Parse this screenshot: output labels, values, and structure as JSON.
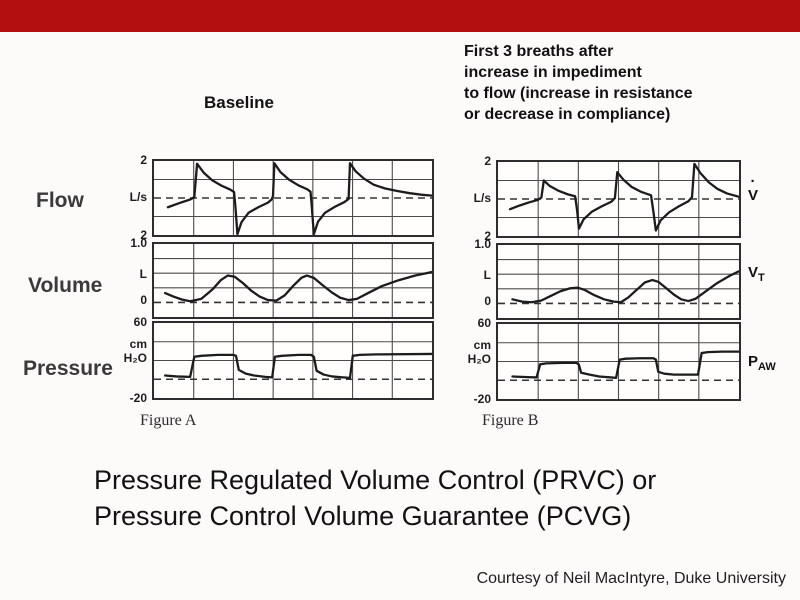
{
  "slide": {
    "accent_bar_color": "#b30e10",
    "title_lines": [
      "Pressure Regulated Volume Control (PRVC) or",
      "Pressure Control Volume Guarantee (PCVG)"
    ],
    "attribution": "Courtesy of Neil MacIntyre, Duke University"
  },
  "headings": {
    "baseline": "Baseline",
    "right_lines": [
      "First 3 breaths after",
      "increase in impediment",
      "to flow (increase in resistance",
      "or decrease in compliance)"
    ]
  },
  "row_labels": {
    "flow": "Flow",
    "volume": "Volume",
    "pressure": "Pressure"
  },
  "figures": {
    "left": "Figure A",
    "right": "Figure B"
  },
  "axis_labels": {
    "flow": {
      "top": "2",
      "mid": "L/s",
      "bottom": "2"
    },
    "volume": {
      "top": "1.0",
      "mid": "L",
      "zero": "0"
    },
    "pressure": {
      "top": "60",
      "unit_line1": "cm",
      "unit_line2": "H₂O",
      "bottom": "-20"
    }
  },
  "trace_labels": {
    "flow_base": "V",
    "flow_dot": "·",
    "volume_base": "V",
    "volume_sub": "T",
    "pressure_base": "P",
    "pressure_sub": "AW"
  },
  "chart_data": [
    {
      "id": "baseline-flow",
      "type": "line",
      "figure": "Figure A",
      "column_title": "Baseline",
      "signal": "Flow",
      "units": "L/s",
      "ylim": [
        -2,
        2
      ],
      "y_gridlines": [
        1,
        -1
      ],
      "baseline_dashed_y": 0,
      "x_columns": 7,
      "x_units": "percent of time axis",
      "breaths": 3,
      "pattern": "Three identical decelerating-flow breaths: peak inspiratory flow ~1.9 L/s decaying toward 0, sharp expiratory spike to ~-2 L/s recovering to baseline",
      "points_xy": [
        [
          5,
          -0.5
        ],
        [
          9,
          -0.28
        ],
        [
          13,
          -0.08
        ],
        [
          14.5,
          0.05
        ],
        [
          15.5,
          1.85
        ],
        [
          18,
          1.35
        ],
        [
          21,
          0.95
        ],
        [
          24.5,
          0.65
        ],
        [
          27.5,
          0.45
        ],
        [
          28.8,
          0.32
        ],
        [
          29.3,
          -0.5
        ],
        [
          30,
          -1.95
        ],
        [
          31.5,
          -1.3
        ],
        [
          34,
          -0.8
        ],
        [
          37.5,
          -0.5
        ],
        [
          41,
          -0.25
        ],
        [
          42.3,
          -0.08
        ],
        [
          42.8,
          0.1
        ],
        [
          43.3,
          1.88
        ],
        [
          45.5,
          1.4
        ],
        [
          48.5,
          1.0
        ],
        [
          52,
          0.68
        ],
        [
          55,
          0.48
        ],
        [
          56.3,
          0.34
        ],
        [
          56.8,
          -0.55
        ],
        [
          57.5,
          -1.95
        ],
        [
          59,
          -1.28
        ],
        [
          61.5,
          -0.8
        ],
        [
          65,
          -0.48
        ],
        [
          68.5,
          -0.22
        ],
        [
          70,
          -0.05
        ],
        [
          70.5,
          1.88
        ],
        [
          72.5,
          1.45
        ],
        [
          75.5,
          1.05
        ],
        [
          79,
          0.72
        ],
        [
          83,
          0.52
        ],
        [
          87.5,
          0.38
        ],
        [
          92,
          0.26
        ],
        [
          96,
          0.18
        ],
        [
          100,
          0.13
        ]
      ]
    },
    {
      "id": "baseline-volume",
      "type": "line",
      "figure": "Figure A",
      "column_title": "Baseline",
      "signal": "Volume",
      "units": "L",
      "ylim": [
        -0.25,
        1.0
      ],
      "y_gridlines": [
        0.75,
        0.5,
        0.25
      ],
      "baseline_dashed_y": 0,
      "x_columns": 7,
      "x_units": "percent of time axis",
      "breaths": 3,
      "pattern": "Constant tidal volume ~0.45 L each breath, returning to 0 between breaths",
      "points_xy": [
        [
          4,
          0.16
        ],
        [
          7,
          0.1
        ],
        [
          10,
          0.05
        ],
        [
          13,
          0.02
        ],
        [
          17,
          0.06
        ],
        [
          21,
          0.22
        ],
        [
          24,
          0.38
        ],
        [
          26.5,
          0.46
        ],
        [
          29,
          0.44
        ],
        [
          32,
          0.33
        ],
        [
          35,
          0.2
        ],
        [
          38,
          0.1
        ],
        [
          41,
          0.04
        ],
        [
          44,
          0.03
        ],
        [
          47,
          0.12
        ],
        [
          50,
          0.28
        ],
        [
          53,
          0.42
        ],
        [
          55,
          0.46
        ],
        [
          57.5,
          0.42
        ],
        [
          60.5,
          0.3
        ],
        [
          64,
          0.17
        ],
        [
          67,
          0.08
        ],
        [
          70,
          0.04
        ],
        [
          73,
          0.06
        ],
        [
          77,
          0.16
        ],
        [
          82,
          0.28
        ],
        [
          88,
          0.38
        ],
        [
          94,
          0.46
        ],
        [
          100,
          0.52
        ]
      ]
    },
    {
      "id": "baseline-pressure",
      "type": "line",
      "figure": "Figure A",
      "column_title": "Baseline",
      "signal": "Pressure",
      "units": "cm H₂O",
      "ylim": [
        -20,
        60
      ],
      "y_gridlines": [
        40,
        20
      ],
      "baseline_dashed_y": 0,
      "x_columns": 7,
      "x_units": "percent of time axis",
      "breaths": 3,
      "pattern": "Square-wave pressure breaths with constant plateau ~26 cm H₂O, baseline just above 0",
      "points_xy": [
        [
          4,
          4
        ],
        [
          8,
          3
        ],
        [
          13,
          2.5
        ],
        [
          14.5,
          24
        ],
        [
          17,
          25
        ],
        [
          23,
          26
        ],
        [
          28.5,
          26
        ],
        [
          29.5,
          25
        ],
        [
          30.5,
          10
        ],
        [
          33,
          6
        ],
        [
          36,
          4
        ],
        [
          40,
          2.5
        ],
        [
          42.5,
          2
        ],
        [
          43.5,
          24
        ],
        [
          46,
          25
        ],
        [
          52,
          26
        ],
        [
          56.5,
          26
        ],
        [
          57.5,
          24
        ],
        [
          58.5,
          9
        ],
        [
          61,
          5
        ],
        [
          64,
          3
        ],
        [
          68,
          2
        ],
        [
          70.5,
          1.5
        ],
        [
          71.5,
          25
        ],
        [
          74,
          26
        ],
        [
          80,
          26.5
        ],
        [
          100,
          27
        ]
      ]
    },
    {
      "id": "impediment-flow",
      "type": "line",
      "figure": "Figure B",
      "column_title": "First 3 breaths after increase in impediment to flow",
      "signal": "Flow",
      "units": "L/s",
      "ylim": [
        -2,
        2
      ],
      "y_gridlines": [
        1,
        -1
      ],
      "baseline_dashed_y": 0,
      "x_columns": 6,
      "x_units": "percent of time axis",
      "breaths": 3,
      "pattern": "Peak inspiratory flow increases each breath (~1.0, ~1.5, ~1.9 L/s) as the ventilator restores volume",
      "points_xy": [
        [
          5,
          -0.55
        ],
        [
          9,
          -0.35
        ],
        [
          13,
          -0.18
        ],
        [
          16.5,
          -0.05
        ],
        [
          18,
          0.08
        ],
        [
          19,
          1.0
        ],
        [
          21.5,
          0.7
        ],
        [
          25,
          0.45
        ],
        [
          29,
          0.25
        ],
        [
          32,
          0.15
        ],
        [
          32.8,
          -0.6
        ],
        [
          33.6,
          -1.6
        ],
        [
          35.5,
          -1.1
        ],
        [
          39,
          -0.68
        ],
        [
          43,
          -0.4
        ],
        [
          47,
          -0.15
        ],
        [
          48.5,
          0.05
        ],
        [
          49.5,
          1.45
        ],
        [
          52,
          1.05
        ],
        [
          55.5,
          0.65
        ],
        [
          59.5,
          0.38
        ],
        [
          63.5,
          0.2
        ],
        [
          64.5,
          -0.7
        ],
        [
          65.5,
          -1.7
        ],
        [
          67.5,
          -1.15
        ],
        [
          71,
          -0.72
        ],
        [
          75,
          -0.4
        ],
        [
          79,
          -0.12
        ],
        [
          80.5,
          0.1
        ],
        [
          81.5,
          1.9
        ],
        [
          84,
          1.4
        ],
        [
          87.5,
          0.9
        ],
        [
          91,
          0.55
        ],
        [
          95,
          0.3
        ],
        [
          100,
          0.12
        ]
      ]
    },
    {
      "id": "impediment-volume",
      "type": "line",
      "figure": "Figure B",
      "column_title": "First 3 breaths after increase in impediment to flow",
      "signal": "Volume",
      "units": "L",
      "ylim": [
        -0.25,
        1.0
      ],
      "y_gridlines": [
        0.75,
        0.5,
        0.25
      ],
      "baseline_dashed_y": 0,
      "x_columns": 6,
      "x_units": "percent of time axis",
      "breaths": 3,
      "pattern": "Tidal volume increases each breath (~0.27, ~0.40, ~0.55 L) back toward target",
      "points_xy": [
        [
          6,
          0.07
        ],
        [
          10,
          0.03
        ],
        [
          14,
          0.02
        ],
        [
          18,
          0.05
        ],
        [
          22,
          0.13
        ],
        [
          26,
          0.21
        ],
        [
          30,
          0.26
        ],
        [
          33,
          0.27
        ],
        [
          36,
          0.23
        ],
        [
          40,
          0.14
        ],
        [
          44,
          0.07
        ],
        [
          48,
          0.03
        ],
        [
          51,
          0.02
        ],
        [
          54,
          0.1
        ],
        [
          58,
          0.25
        ],
        [
          61,
          0.36
        ],
        [
          64,
          0.4
        ],
        [
          66.5,
          0.37
        ],
        [
          69.5,
          0.27
        ],
        [
          73,
          0.15
        ],
        [
          76,
          0.07
        ],
        [
          79,
          0.04
        ],
        [
          82,
          0.08
        ],
        [
          86,
          0.2
        ],
        [
          91,
          0.35
        ],
        [
          96,
          0.47
        ],
        [
          100,
          0.55
        ]
      ]
    },
    {
      "id": "impediment-pressure",
      "type": "line",
      "figure": "Figure B",
      "column_title": "First 3 breaths after increase in impediment to flow",
      "signal": "Pressure",
      "units": "cm H₂O",
      "ylim": [
        -20,
        60
      ],
      "y_gridlines": [
        40,
        20
      ],
      "baseline_dashed_y": 0,
      "x_columns": 6,
      "x_units": "percent of time axis",
      "breaths": 3,
      "pattern": "Pressure plateau rises each breath (~18, ~23, ~30 cm H₂O) to restore tidal volume",
      "points_xy": [
        [
          6,
          4
        ],
        [
          11,
          3.5
        ],
        [
          16,
          3
        ],
        [
          17.5,
          17
        ],
        [
          20,
          18
        ],
        [
          27,
          18.5
        ],
        [
          32.5,
          18.5
        ],
        [
          33.5,
          17
        ],
        [
          34.5,
          8
        ],
        [
          38,
          6
        ],
        [
          42,
          4
        ],
        [
          47,
          3
        ],
        [
          49,
          2.5
        ],
        [
          50.5,
          22
        ],
        [
          53,
          23
        ],
        [
          59,
          23.5
        ],
        [
          64.5,
          23.5
        ],
        [
          65.5,
          22
        ],
        [
          66.5,
          9
        ],
        [
          69,
          7
        ],
        [
          73,
          6
        ],
        [
          79,
          6
        ],
        [
          83,
          6
        ],
        [
          84.5,
          29
        ],
        [
          87,
          30
        ],
        [
          93,
          30.5
        ],
        [
          100,
          30.5
        ]
      ]
    }
  ]
}
